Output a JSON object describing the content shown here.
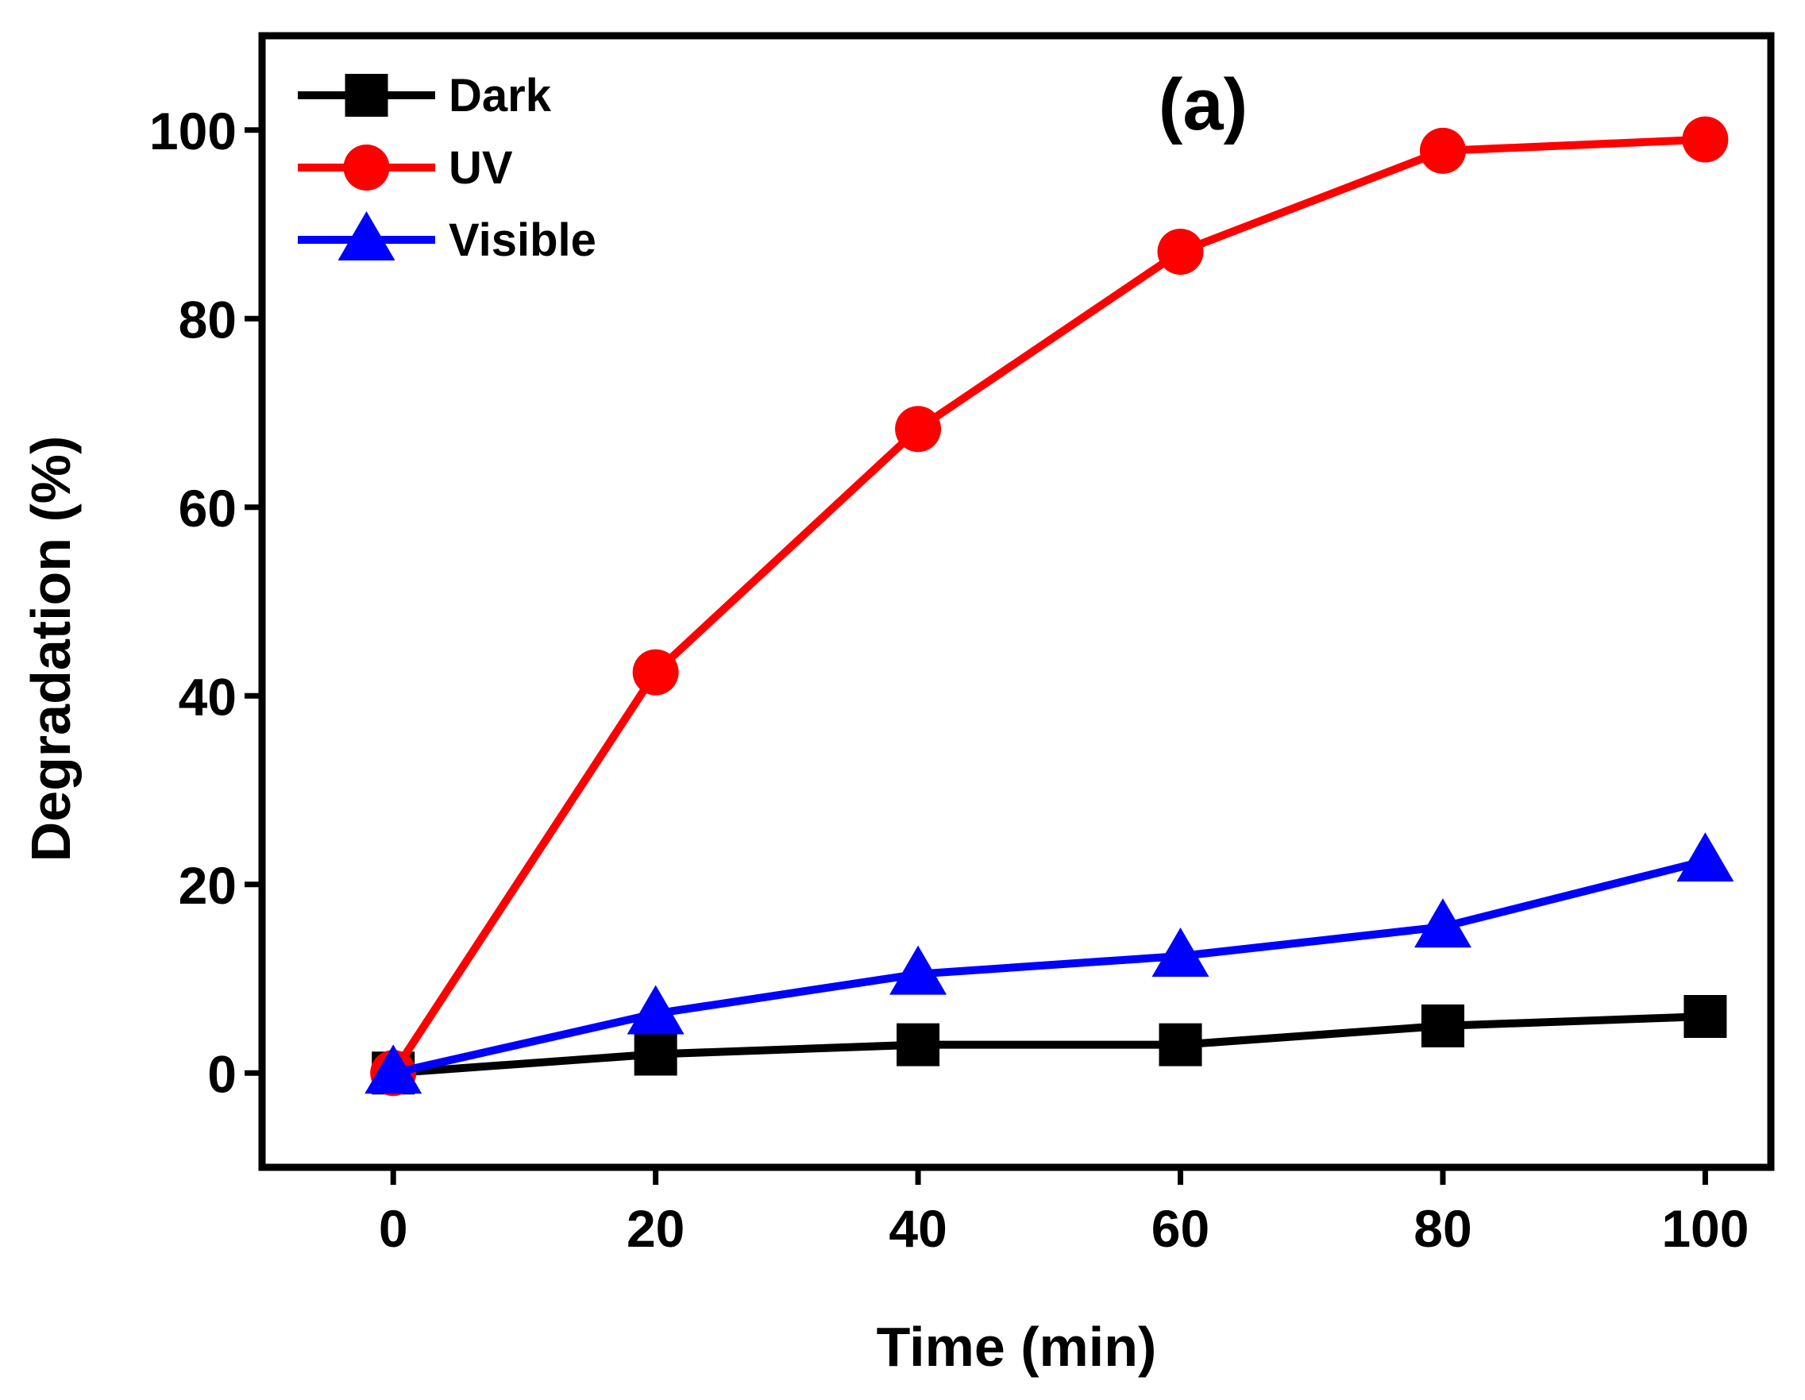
{
  "chart_data": {
    "type": "line",
    "panel_label": "(a)",
    "xlabel": "Time (min)",
    "ylabel": "Degradation (%)",
    "xlim": [
      -10,
      105
    ],
    "ylim": [
      -10,
      110
    ],
    "xticks": [
      0,
      20,
      40,
      60,
      80,
      100
    ],
    "yticks": [
      0,
      20,
      40,
      60,
      80,
      100
    ],
    "grid": false,
    "legend_position": "top-left",
    "x": [
      0,
      20,
      40,
      60,
      80,
      100
    ],
    "series": [
      {
        "name": "Dark",
        "color": "#000000",
        "marker": "square",
        "values": [
          0,
          2,
          3,
          3,
          5,
          6
        ]
      },
      {
        "name": "UV",
        "color": "#ff0000",
        "marker": "circle",
        "values": [
          0,
          42.5,
          68.3,
          87.1,
          97.8,
          99.0
        ]
      },
      {
        "name": "Visible",
        "color": "#0000ff",
        "marker": "triangle",
        "values": [
          0,
          6.3,
          10.5,
          12.4,
          15.5,
          22.5
        ]
      }
    ]
  }
}
